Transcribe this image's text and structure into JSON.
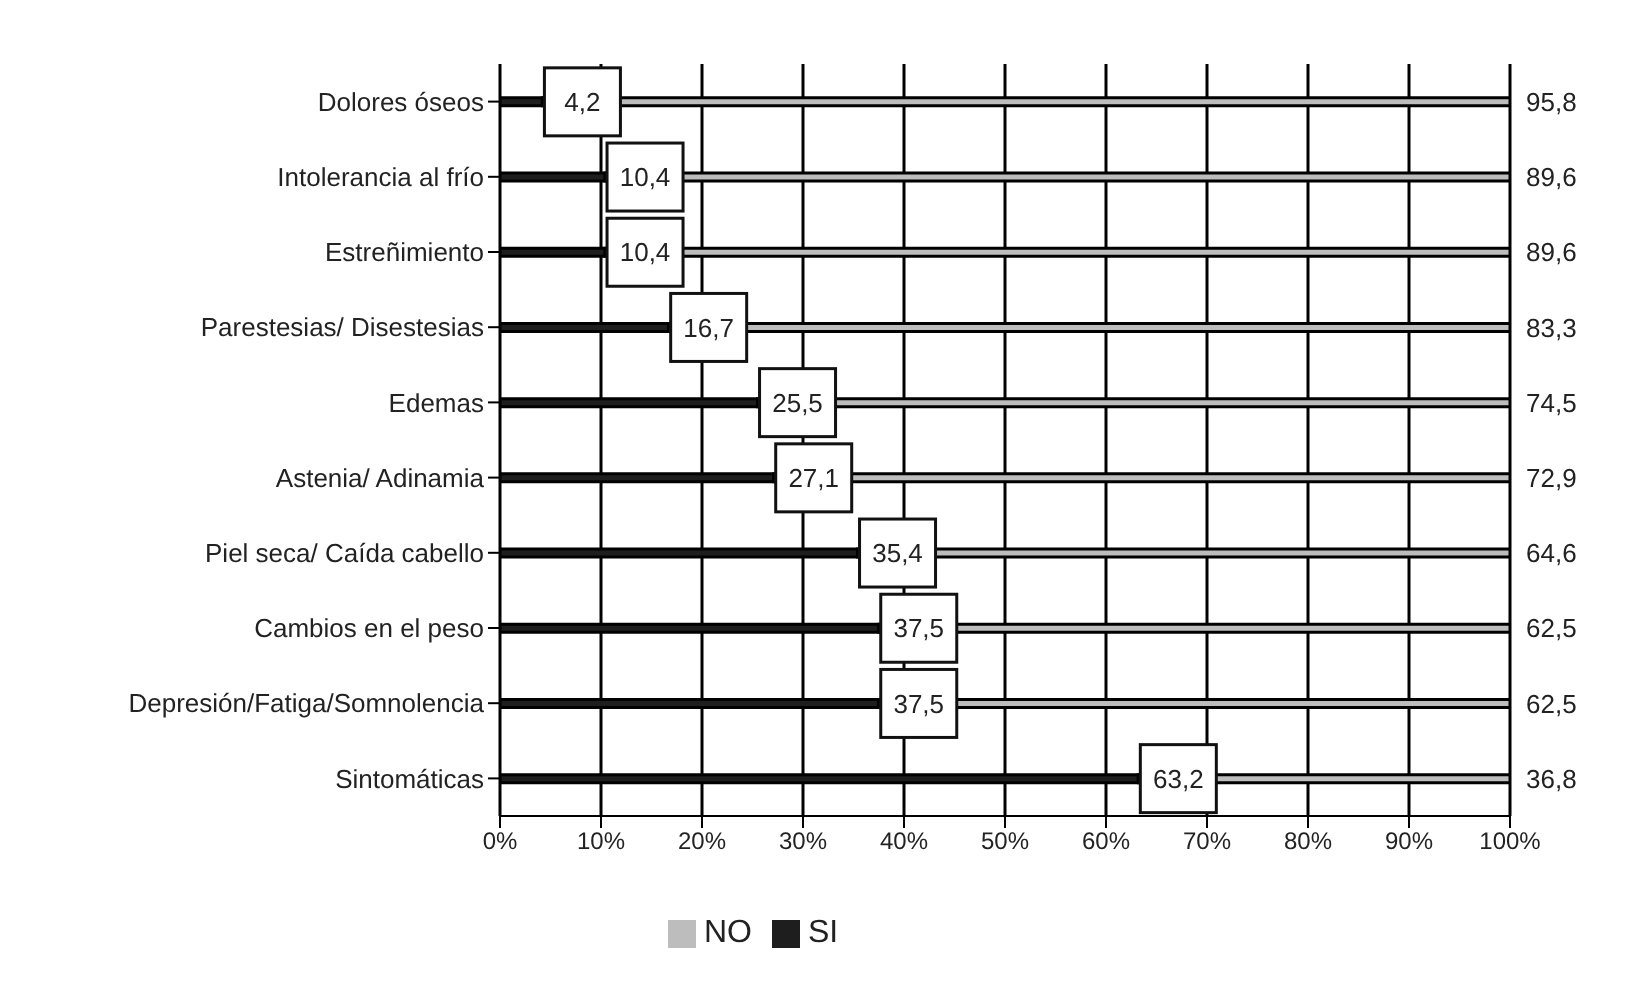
{
  "chart_data": {
    "type": "bar",
    "orientation": "horizontal",
    "stacked": true,
    "categories": [
      "Dolores óseos",
      "Intolerancia al frío",
      "Estreñimiento",
      "Parestesias/ Disestesias",
      "Edemas",
      "Astenia/ Adinamia",
      "Piel seca/ Caída cabello",
      "Cambios en el peso",
      "Depresión/Fatiga/Somnolencia",
      "Sintomáticas"
    ],
    "series": [
      {
        "name": "SI",
        "color": "#1e1e1e",
        "values": [
          4.2,
          10.4,
          10.4,
          16.7,
          25.5,
          27.1,
          35.4,
          37.5,
          37.5,
          63.2
        ],
        "value_labels": [
          "4,2",
          "10,4",
          "10,4",
          "16,7",
          "25,5",
          "27,1",
          "35,4",
          "37,5",
          "37,5",
          "63,2"
        ]
      },
      {
        "name": "NO",
        "color": "#bdbdbd",
        "values": [
          95.8,
          89.6,
          89.6,
          83.3,
          74.5,
          72.9,
          64.6,
          62.5,
          62.5,
          36.8
        ],
        "value_labels": [
          "95,8",
          "89,6",
          "89,6",
          "83,3",
          "74,5",
          "72,9",
          "64,6",
          "62,5",
          "62,5",
          "36,8"
        ]
      }
    ],
    "xlim": [
      0,
      100
    ],
    "xticks": [
      {
        "value": 0,
        "label": "0%"
      },
      {
        "value": 10,
        "label": "10%"
      },
      {
        "value": 20,
        "label": "20%"
      },
      {
        "value": 30,
        "label": "30%"
      },
      {
        "value": 40,
        "label": "40%"
      },
      {
        "value": 50,
        "label": "50%"
      },
      {
        "value": 60,
        "label": "60%"
      },
      {
        "value": 70,
        "label": "70%"
      },
      {
        "value": 80,
        "label": "80%"
      },
      {
        "value": 90,
        "label": "90%"
      },
      {
        "value": 100,
        "label": "100%"
      }
    ],
    "grid": "x",
    "legend": "bottom"
  }
}
